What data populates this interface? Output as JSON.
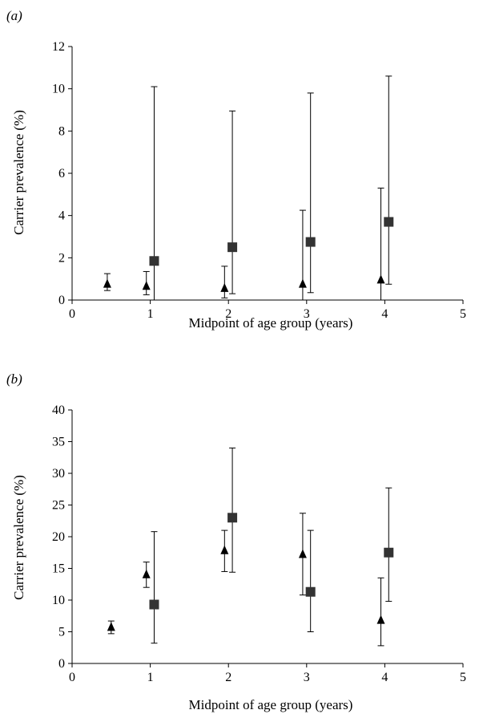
{
  "chart_data": [
    {
      "type": "scatter",
      "panel_label": "(a)",
      "xlabel": "Midpoint of age group (years)",
      "ylabel": "Carrier prevalence (%)",
      "xlim": [
        0,
        5
      ],
      "ylim": [
        0,
        12
      ],
      "xticks": [
        0,
        1,
        2,
        3,
        4,
        5
      ],
      "yticks": [
        0,
        2,
        4,
        6,
        8,
        10,
        12
      ],
      "grid": false,
      "series": [
        {
          "marker": "triangle",
          "color": "#000000",
          "points": [
            {
              "x": 0.45,
              "y": 0.75,
              "lo": 0.45,
              "hi": 1.25
            },
            {
              "x": 0.95,
              "y": 0.65,
              "lo": 0.25,
              "hi": 1.35
            },
            {
              "x": 1.95,
              "y": 0.55,
              "lo": 0.1,
              "hi": 1.6
            },
            {
              "x": 2.95,
              "y": 0.75,
              "lo": 0.0,
              "hi": 4.25
            },
            {
              "x": 3.95,
              "y": 0.95,
              "lo": 0.0,
              "hi": 5.3
            }
          ]
        },
        {
          "marker": "square",
          "color": "#333333",
          "points": [
            {
              "x": 1.05,
              "y": 1.85,
              "lo": 0.0,
              "hi": 10.1
            },
            {
              "x": 2.05,
              "y": 2.5,
              "lo": 0.3,
              "hi": 8.95
            },
            {
              "x": 3.05,
              "y": 2.75,
              "lo": 0.35,
              "hi": 9.8
            },
            {
              "x": 4.05,
              "y": 3.7,
              "lo": 0.75,
              "hi": 10.6
            }
          ]
        }
      ]
    },
    {
      "type": "scatter",
      "panel_label": "(b)",
      "xlabel": "Midpoint of age group (years)",
      "ylabel": "Carrier prevalence (%)",
      "xlim": [
        0,
        5
      ],
      "ylim": [
        0,
        40
      ],
      "xticks": [
        0,
        1,
        2,
        3,
        4,
        5
      ],
      "yticks": [
        0,
        5,
        10,
        15,
        20,
        25,
        30,
        35,
        40
      ],
      "grid": false,
      "series": [
        {
          "marker": "triangle",
          "color": "#000000",
          "points": [
            {
              "x": 0.5,
              "y": 5.7,
              "lo": 4.7,
              "hi": 6.7
            },
            {
              "x": 0.95,
              "y": 14.0,
              "lo": 12.0,
              "hi": 16.0
            },
            {
              "x": 1.95,
              "y": 17.8,
              "lo": 14.5,
              "hi": 21.0
            },
            {
              "x": 2.95,
              "y": 17.2,
              "lo": 10.8,
              "hi": 23.7
            },
            {
              "x": 3.95,
              "y": 6.8,
              "lo": 2.8,
              "hi": 13.5
            }
          ]
        },
        {
          "marker": "square",
          "color": "#333333",
          "points": [
            {
              "x": 1.05,
              "y": 9.3,
              "lo": 3.2,
              "hi": 20.8
            },
            {
              "x": 2.05,
              "y": 23.0,
              "lo": 14.4,
              "hi": 34.0
            },
            {
              "x": 3.05,
              "y": 11.3,
              "lo": 5.0,
              "hi": 21.0
            },
            {
              "x": 4.05,
              "y": 17.5,
              "lo": 9.8,
              "hi": 27.7
            }
          ]
        }
      ]
    }
  ]
}
